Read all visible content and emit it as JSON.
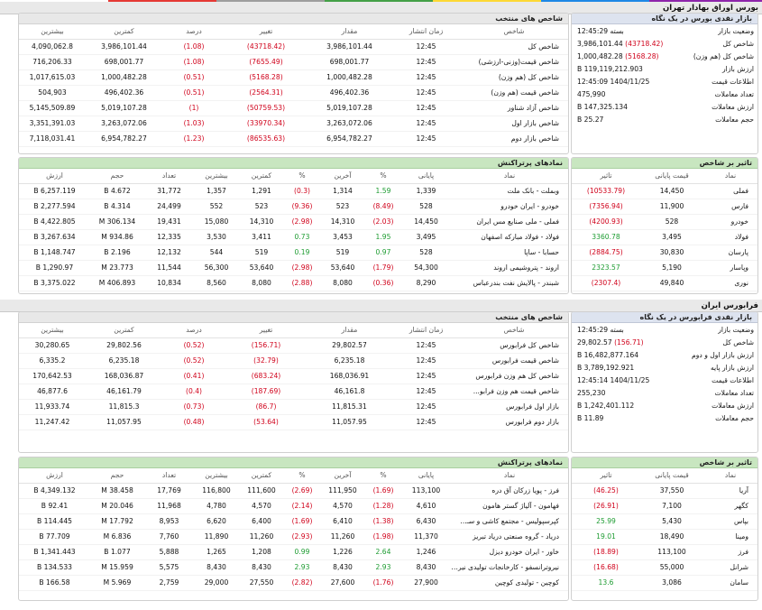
{
  "colors": {
    "negative": "#d0021b",
    "positive": "#1e9c32",
    "green_header": "#c8e6c0",
    "blue_header": "#dde3ef"
  },
  "bourse": {
    "title": "بورس اوراق بهادار تهران",
    "market_panel": {
      "title": "بازار نقدی بورس در یک نگاه",
      "rows": [
        {
          "label": "وضعیت بازار",
          "value": "بسته 12:45:29",
          "change": ""
        },
        {
          "label": "شاخص کل",
          "value": "3,986,101.44",
          "change": "(43718.42)"
        },
        {
          "label": "شاخص کل (هم وزن)",
          "value": "1,000,482.28",
          "change": "(5168.28)"
        },
        {
          "label": "ارزش بازار",
          "value": "119,119,212.903 B",
          "change": ""
        },
        {
          "label": "اطلاعات قیمت",
          "value": "1404/11/25 12:45:09",
          "change": ""
        },
        {
          "label": "تعداد معاملات",
          "value": "475,990",
          "change": ""
        },
        {
          "label": "ارزش معاملات",
          "value": "147,325.134 B",
          "change": ""
        },
        {
          "label": "حجم معاملات",
          "value": "25.27 B",
          "change": ""
        }
      ]
    },
    "indices": {
      "title": "شاخص های منتخب",
      "headers": [
        "شاخص",
        "زمان انتشار",
        "مقدار",
        "تغییر",
        "درصد",
        "کمترین",
        "بیشترین"
      ],
      "rows": [
        {
          "name": "شاخص کل",
          "time": "12:45",
          "value": "3,986,101.44",
          "change": "(43718.42)",
          "percent": "(1.08)",
          "min": "3,986,101.44",
          "max": "4,090,062.8"
        },
        {
          "name": "شاخص قیمت(وزنی-ارزشی)",
          "time": "12:45",
          "value": "698,001.77",
          "change": "(7655.49)",
          "percent": "(1.08)",
          "min": "698,001.77",
          "max": "716,206.33"
        },
        {
          "name": "شاخص کل (هم وزن)",
          "time": "12:45",
          "value": "1,000,482.28",
          "change": "(5168.28)",
          "percent": "(0.51)",
          "min": "1,000,482.28",
          "max": "1,017,615.03"
        },
        {
          "name": "شاخص قیمت (هم وزن)",
          "time": "12:45",
          "value": "496,402.36",
          "change": "(2564.31)",
          "percent": "(0.51)",
          "min": "496,402.36",
          "max": "504,903"
        },
        {
          "name": "شاخص آزاد شناور",
          "time": "12:45",
          "value": "5,019,107.28",
          "change": "(50759.53)",
          "percent": "(1)",
          "min": "5,019,107.28",
          "max": "5,145,509.89"
        },
        {
          "name": "شاخص بازار اول",
          "time": "12:45",
          "value": "3,263,072.06",
          "change": "(33970.34)",
          "percent": "(1.03)",
          "min": "3,263,072.06",
          "max": "3,351,391.03"
        },
        {
          "name": "شاخص بازار دوم",
          "time": "12:45",
          "value": "6,954,782.27",
          "change": "(86535.63)",
          "percent": "(1.23)",
          "min": "6,954,782.27",
          "max": "7,118,031.41"
        }
      ]
    },
    "impact": {
      "title": "تاثیر بر شاخص",
      "headers": [
        "نماد",
        "قیمت پایانی",
        "تاثیر"
      ],
      "rows": [
        {
          "name": "فملی",
          "price": "14,450",
          "impact": "(10533.79)",
          "sign": "neg"
        },
        {
          "name": "فارس",
          "price": "11,900",
          "impact": "(7356.94)",
          "sign": "neg"
        },
        {
          "name": "خودرو",
          "price": "528",
          "impact": "(4200.93)",
          "sign": "neg"
        },
        {
          "name": "فولاد",
          "price": "3,495",
          "impact": "3360.78",
          "sign": "pos"
        },
        {
          "name": "پارسان",
          "price": "30,830",
          "impact": "(2884.75)",
          "sign": "neg"
        },
        {
          "name": "وپاسار",
          "price": "5,190",
          "impact": "2323.57",
          "sign": "pos"
        },
        {
          "name": "نوری",
          "price": "49,840",
          "impact": "(2307.4)",
          "sign": "neg"
        }
      ]
    },
    "symbols": {
      "title": "نمادهای پرتراکنش",
      "headers": [
        "نماد",
        "پایانی",
        "%",
        "آخرین",
        "%",
        "کمترین",
        "بیشترین",
        "تعداد",
        "حجم",
        "ارزش"
      ],
      "rows": [
        {
          "name": "وبملت - بانک ملت",
          "close": "1,339",
          "close_pct": "1.59",
          "last": "1,314",
          "last_pct": "(0.3)",
          "min": "1,291",
          "max": "1,357",
          "count": "31,772",
          "volume": "4.672 B",
          "value": "6,257.119 B"
        },
        {
          "name": "خودرو - ایران خودرو",
          "close": "528",
          "close_pct": "(8.49)",
          "last": "523",
          "last_pct": "(9.36)",
          "min": "523",
          "max": "552",
          "count": "24,499",
          "volume": "4.314 B",
          "value": "2,277.594 B"
        },
        {
          "name": "فملی - ملی صنایع مس ایران",
          "close": "14,450",
          "close_pct": "(2.03)",
          "last": "14,310",
          "last_pct": "(2.98)",
          "min": "14,310",
          "max": "15,080",
          "count": "19,431",
          "volume": "306.134 M",
          "value": "4,422.805 B"
        },
        {
          "name": "فولاد - فولاد مبارکه اصفهان",
          "close": "3,495",
          "close_pct": "1.95",
          "last": "3,453",
          "last_pct": "0.73",
          "min": "3,411",
          "max": "3,530",
          "count": "12,335",
          "volume": "934.86 M",
          "value": "3,267.634 B"
        },
        {
          "name": "حسابا - ساپا",
          "close": "528",
          "close_pct": "0.97",
          "last": "519",
          "last_pct": "0.19",
          "min": "519",
          "max": "544",
          "count": "12,132",
          "volume": "2.196 B",
          "value": "1,148.747 B"
        },
        {
          "name": "اروند - پتروشیمی اروند",
          "close": "54,300",
          "close_pct": "(1.79)",
          "last": "53,640",
          "last_pct": "(2.98)",
          "min": "53,640",
          "max": "56,300",
          "count": "11,544",
          "volume": "23.773 M",
          "value": "1,290.97 B"
        },
        {
          "name": "شبندر - پالایش نفت بندرعباس",
          "close": "8,290",
          "close_pct": "(0.36)",
          "last": "8,080",
          "last_pct": "(2.88)",
          "min": "8,080",
          "max": "8,560",
          "count": "10,834",
          "volume": "406.893 M",
          "value": "3,375.022 B"
        }
      ]
    }
  },
  "farabourse": {
    "title": "فرابورس ایران",
    "market_panel": {
      "title": "بازار نقدی فرابورس در یک نگاه",
      "rows": [
        {
          "label": "وضعیت بازار",
          "value": "بسته 12:45:29",
          "change": ""
        },
        {
          "label": "شاخص کل",
          "value": "29,802.57",
          "change": "(156.71)"
        },
        {
          "label": "ارزش بازار اول و دوم",
          "value": "16,482,877.164 B",
          "change": ""
        },
        {
          "label": "ارزش بازار پایه",
          "value": "3,789,192.921 B",
          "change": ""
        },
        {
          "label": "اطلاعات قیمت",
          "value": "1404/11/25 12:45:14",
          "change": ""
        },
        {
          "label": "تعداد معاملات",
          "value": "255,230",
          "change": ""
        },
        {
          "label": "ارزش معاملات",
          "value": "1,242,401.112 B",
          "change": ""
        },
        {
          "label": "حجم معاملات",
          "value": "11.89 B",
          "change": ""
        }
      ]
    },
    "indices": {
      "title": "شاخص های منتخب",
      "headers": [
        "شاخص",
        "زمان انتشار",
        "مقدار",
        "تغییر",
        "درصد",
        "کمترین",
        "بیشترین"
      ],
      "rows": [
        {
          "name": "شاخص کل فرابورس",
          "time": "12:45",
          "value": "29,802.57",
          "change": "(156.71)",
          "percent": "(0.52)",
          "min": "29,802.56",
          "max": "30,280.65"
        },
        {
          "name": "شاخص قیمت فرابورس",
          "time": "12:45",
          "value": "6,235.18",
          "change": "(32.79)",
          "percent": "(0.52)",
          "min": "6,235.18",
          "max": "6,335.2"
        },
        {
          "name": "شاخص کل هم وزن فرابورس",
          "time": "12:45",
          "value": "168,036.91",
          "change": "(683.24)",
          "percent": "(0.41)",
          "min": "168,036.87",
          "max": "170,642.53"
        },
        {
          "name": "شاخص قیمت هم وزن فرابو...",
          "time": "12:45",
          "value": "46,161.8",
          "change": "(187.69)",
          "percent": "(0.4)",
          "min": "46,161.79",
          "max": "46,877.6"
        },
        {
          "name": "بازار اول فرابورس",
          "time": "12:45",
          "value": "11,815.31",
          "change": "(86.7)",
          "percent": "(0.73)",
          "min": "11,815.3",
          "max": "11,933.74"
        },
        {
          "name": "بازار دوم فرابورس",
          "time": "12:45",
          "value": "11,057.95",
          "change": "(53.64)",
          "percent": "(0.48)",
          "min": "11,057.95",
          "max": "11,247.42"
        }
      ]
    },
    "impact": {
      "title": "تاثیر بر شاخص",
      "headers": [
        "نماد",
        "قیمت پایانی",
        "تاثیر"
      ],
      "rows": [
        {
          "name": "آریا",
          "price": "37,550",
          "impact": "(46.25)",
          "sign": "neg"
        },
        {
          "name": "کگهر",
          "price": "7,100",
          "impact": "(26.91)",
          "sign": "neg"
        },
        {
          "name": "بپاس",
          "price": "5,430",
          "impact": "25.99",
          "sign": "pos"
        },
        {
          "name": "ومینا",
          "price": "18,490",
          "impact": "19.01",
          "sign": "pos"
        },
        {
          "name": "فرز",
          "price": "113,100",
          "impact": "(18.89)",
          "sign": "neg"
        },
        {
          "name": "شرانل",
          "price": "55,000",
          "impact": "(16.68)",
          "sign": "neg"
        },
        {
          "name": "سامان",
          "price": "3,086",
          "impact": "13.6",
          "sign": "pos"
        }
      ]
    },
    "symbols": {
      "title": "نمادهای پرتراکنش",
      "headers": [
        "نماد",
        "پایانی",
        "%",
        "آخرین",
        "%",
        "کمترین",
        "بیشترین",
        "تعداد",
        "حجم",
        "ارزش"
      ],
      "rows": [
        {
          "name": "فرز - پویا زرکان آق دره",
          "close": "113,100",
          "close_pct": "(1.69)",
          "last": "111,950",
          "last_pct": "(2.69)",
          "min": "111,600",
          "max": "116,800",
          "count": "17,769",
          "volume": "38.458 M",
          "value": "4,349.132 B"
        },
        {
          "name": "فهامون - آلیاژ گستر هامون",
          "close": "4,610",
          "close_pct": "(1.28)",
          "last": "4,570",
          "last_pct": "(2.14)",
          "min": "4,570",
          "max": "4,780",
          "count": "11,968",
          "volume": "20.046 M",
          "value": "92.41 B"
        },
        {
          "name": "کپرسپولیس - مجتمع کاشی و سـ...",
          "close": "6,430",
          "close_pct": "(1.38)",
          "last": "6,410",
          "last_pct": "(1.69)",
          "min": "6,400",
          "max": "6,620",
          "count": "8,953",
          "volume": "17.792 M",
          "value": "114.445 B"
        },
        {
          "name": "دریاد - گروه صنعتی دریاد تبریز",
          "close": "11,370",
          "close_pct": "(1.98)",
          "last": "11,260",
          "last_pct": "(2.93)",
          "min": "11,260",
          "max": "11,890",
          "count": "7,760",
          "volume": "6.836 M",
          "value": "77.709 B"
        },
        {
          "name": "خاور - ایران خودرو دیزل",
          "close": "1,246",
          "close_pct": "2.64",
          "last": "1,226",
          "last_pct": "0.99",
          "min": "1,208",
          "max": "1,265",
          "count": "5,888",
          "volume": "1.077 B",
          "value": "1,341.443 B"
        },
        {
          "name": "نیروترانسفو - کارخانجات تولیدی نیرو...",
          "close": "8,430",
          "close_pct": "2.93",
          "last": "8,430",
          "last_pct": "2.93",
          "min": "8,430",
          "max": "8,430",
          "count": "5,575",
          "volume": "15.959 M",
          "value": "134.533 B"
        },
        {
          "name": "کوچین - تولیدی کوچین",
          "close": "27,900",
          "close_pct": "(1.76)",
          "last": "27,600",
          "last_pct": "(2.82)",
          "min": "27,550",
          "max": "29,000",
          "count": "2,759",
          "volume": "5.969 M",
          "value": "166.58 B"
        }
      ]
    }
  }
}
